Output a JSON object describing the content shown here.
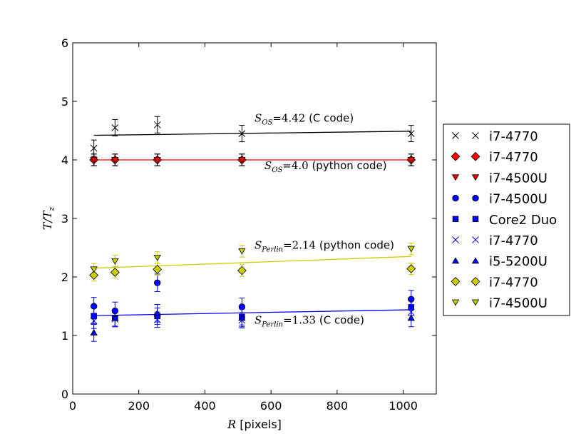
{
  "chart_data": {
    "type": "scatter",
    "xlabel_var": "R",
    "xlabel_unit": " [pixels]",
    "ylabel_var": "T",
    "ylabel_sub": "z",
    "xlim": [
      0,
      1100
    ],
    "ylim": [
      0,
      6
    ],
    "xticks": [
      0,
      200,
      400,
      600,
      800,
      1000
    ],
    "yticks": [
      0,
      1,
      2,
      3,
      4,
      5,
      6
    ],
    "grid": false,
    "legend_position": "outside-right",
    "series": [
      {
        "name": "i7-4770",
        "marker": "x",
        "color": "#000000",
        "x": [
          64,
          128,
          256,
          512,
          1024
        ],
        "y": [
          4.2,
          4.55,
          4.6,
          4.45,
          4.45
        ],
        "err": [
          0.14,
          0.14,
          0.14,
          0.14,
          0.14
        ]
      },
      {
        "name": "i7-4770",
        "marker": "D",
        "color": "#ff0000",
        "x": [
          64,
          128,
          256,
          512,
          1024
        ],
        "y": [
          4.0,
          4.0,
          4.0,
          4.0,
          4.0
        ],
        "err": [
          0.1,
          0.1,
          0.1,
          0.1,
          0.1
        ]
      },
      {
        "name": "i7-4500U",
        "marker": "v",
        "color": "#ff0000",
        "x": [
          64,
          128,
          256,
          512,
          1024
        ],
        "y": [
          4.0,
          4.0,
          4.0,
          4.0,
          4.0
        ],
        "err": [
          0.1,
          0.1,
          0.1,
          0.1,
          0.1
        ]
      },
      {
        "name": "i7-4500U",
        "marker": "o",
        "color": "#0000ff",
        "x": [
          64,
          128,
          256,
          512,
          1024
        ],
        "y": [
          1.5,
          1.42,
          1.9,
          1.49,
          1.62
        ],
        "err": [
          0.15,
          0.15,
          0.15,
          0.15,
          0.15
        ]
      },
      {
        "name": "Core2 Duo",
        "marker": "s",
        "color": "#0000ff",
        "x": [
          64,
          128,
          256,
          512,
          1024
        ],
        "y": [
          1.33,
          1.3,
          1.33,
          1.32,
          1.48
        ],
        "err": [
          0.14,
          0.14,
          0.14,
          0.14,
          0.14
        ]
      },
      {
        "name": "i7-4770",
        "marker": "x",
        "color": "#0000ff",
        "x": [
          64,
          128,
          256,
          512,
          1024
        ],
        "y": [
          1.25,
          1.28,
          1.27,
          1.26,
          1.4
        ],
        "err": [
          0.13,
          0.13,
          0.13,
          0.13,
          0.13
        ]
      },
      {
        "name": "i5-5200U",
        "marker": "^",
        "color": "#0000ff",
        "x": [
          64,
          128,
          256,
          512,
          1024
        ],
        "y": [
          1.05,
          1.3,
          1.38,
          1.3,
          1.3
        ],
        "err": [
          0.15,
          0.15,
          0.15,
          0.15,
          0.15
        ]
      },
      {
        "name": "i7-4770",
        "marker": "D",
        "color": "#cccc00",
        "x": [
          64,
          128,
          256,
          512,
          1024
        ],
        "y": [
          2.03,
          2.08,
          2.13,
          2.11,
          2.14
        ],
        "err": [
          0.1,
          0.1,
          0.1,
          0.1,
          0.1
        ]
      },
      {
        "name": "i7-4500U",
        "marker": "v",
        "color": "#cccc00",
        "x": [
          64,
          128,
          256,
          512,
          1024
        ],
        "y": [
          2.13,
          2.27,
          2.33,
          2.44,
          2.48
        ],
        "err": [
          0.1,
          0.1,
          0.1,
          0.1,
          0.1
        ]
      }
    ],
    "fit_lines": [
      {
        "color": "#000000",
        "x": [
          64,
          1024
        ],
        "y": [
          4.42,
          4.49
        ]
      },
      {
        "color": "#ff0000",
        "x": [
          64,
          1024
        ],
        "y": [
          4.0,
          4.0
        ]
      },
      {
        "color": "#cccc00",
        "x": [
          64,
          1024
        ],
        "y": [
          2.15,
          2.35
        ]
      },
      {
        "color": "#0000ff",
        "x": [
          64,
          1024
        ],
        "y": [
          1.34,
          1.44
        ]
      }
    ],
    "annotations": [
      {
        "sym": "S",
        "sub": "OS",
        "value": "=4.42",
        "suffix": " (C code)",
        "x": 550,
        "y": 4.65
      },
      {
        "sym": "S",
        "sub": "OS",
        "value": "=4.0",
        "suffix": " (python code)",
        "x": 580,
        "y": 3.84
      },
      {
        "sym": "S",
        "sub": "Perlin",
        "value": "=2.14",
        "suffix": " (python code)",
        "x": 550,
        "y": 2.48
      },
      {
        "sym": "S",
        "sub": "Perlin",
        "value": "=1.33",
        "suffix": " (C code)",
        "x": 550,
        "y": 1.2
      }
    ]
  }
}
